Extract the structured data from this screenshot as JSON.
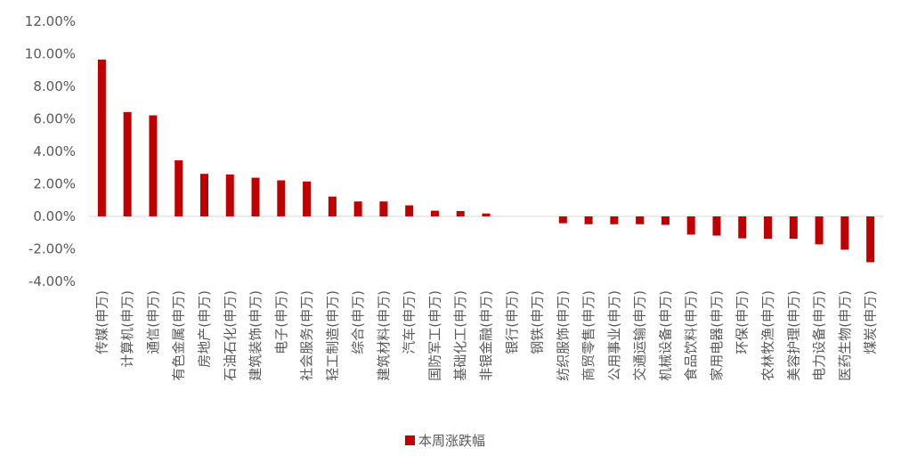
{
  "chart_data": {
    "type": "bar",
    "categories": [
      "传媒(申万)",
      "计算机(申万)",
      "通信(申万)",
      "有色金属(申万)",
      "房地产(申万)",
      "石油石化(申万)",
      "建筑装饰(申万)",
      "电子(申万)",
      "社会服务(申万)",
      "轻工制造(申万)",
      "综合(申万)",
      "建筑材料(申万)",
      "汽车(申万)",
      "国防军工(申万)",
      "基础化工(申万)",
      "非银金融(申万)",
      "银行(申万)",
      "钢铁(申万)",
      "纺织服饰(申万)",
      "商贸零售(申万)",
      "公用事业(申万)",
      "交通运输(申万)",
      "机械设备(申万)",
      "食品饮料(申万)",
      "家用电器(申万)",
      "环保(申万)",
      "农林牧渔(申万)",
      "美容护理(申万)",
      "电力设备(申万)",
      "医药生物(申万)",
      "煤炭(申万)"
    ],
    "series": [
      {
        "name": "本周涨跌幅",
        "color": "#C00000",
        "values": [
          9.65,
          6.42,
          6.22,
          3.45,
          2.62,
          2.58,
          2.38,
          2.22,
          2.15,
          1.22,
          0.92,
          0.92,
          0.68,
          0.35,
          0.33,
          0.18,
          0.0,
          0.0,
          -0.42,
          -0.48,
          -0.48,
          -0.48,
          -0.52,
          -1.12,
          -1.18,
          -1.35,
          -1.38,
          -1.38,
          -1.72,
          -2.05,
          -2.82
        ]
      }
    ],
    "ylim": [
      -4,
      12
    ],
    "yticks": [
      "-4.00%",
      "-2.00%",
      "0.00%",
      "2.00%",
      "4.00%",
      "6.00%",
      "8.00%",
      "10.00%",
      "12.00%"
    ],
    "ytick_values": [
      -4,
      -2,
      0,
      2,
      4,
      6,
      8,
      10,
      12
    ],
    "grid": false,
    "legend": "bottom"
  }
}
